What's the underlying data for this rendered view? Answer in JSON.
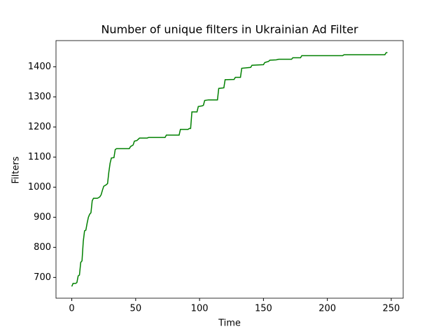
{
  "chart_data": {
    "type": "line",
    "title": "Number of unique filters in Ukrainian Ad Filter",
    "xlabel": "Time",
    "ylabel": "Filters",
    "x": [
      0,
      1,
      3,
      4,
      5,
      6,
      7,
      8,
      9,
      10,
      11,
      12,
      13,
      14,
      15,
      16,
      17,
      20,
      21,
      22,
      23,
      24,
      25,
      27,
      28,
      29,
      30,
      31,
      33,
      34,
      35,
      45,
      46,
      48,
      49,
      51,
      53,
      59,
      60,
      73,
      74,
      84,
      85,
      91,
      92,
      93,
      94,
      98,
      99,
      102,
      103,
      104,
      107,
      114,
      115,
      119,
      120,
      127,
      128,
      132,
      133,
      140,
      141,
      150,
      151,
      154,
      155,
      160,
      162,
      172,
      173,
      179,
      180,
      212,
      213,
      245,
      246,
      247
    ],
    "series": [
      {
        "name": "Filters",
        "color": "#008000",
        "values": [
          670,
          680,
          680,
          683,
          705,
          708,
          750,
          755,
          820,
          855,
          857,
          880,
          900,
          910,
          915,
          955,
          963,
          963,
          965,
          968,
          975,
          990,
          1003,
          1008,
          1012,
          1050,
          1080,
          1097,
          1098,
          1125,
          1128,
          1128,
          1135,
          1140,
          1153,
          1155,
          1163,
          1163,
          1165,
          1165,
          1173,
          1173,
          1192,
          1192,
          1195,
          1195,
          1250,
          1250,
          1268,
          1270,
          1272,
          1288,
          1290,
          1290,
          1328,
          1330,
          1357,
          1358,
          1365,
          1365,
          1395,
          1398,
          1405,
          1407,
          1414,
          1418,
          1422,
          1423,
          1425,
          1425,
          1430,
          1430,
          1437,
          1437,
          1440,
          1440,
          1447,
          1447
        ]
      }
    ],
    "xlim": [
      -12.35,
      259.35
    ],
    "xticks": [
      0,
      50,
      100,
      150,
      200,
      250
    ],
    "ylim": [
      631,
      1487
    ],
    "yticks": [
      700,
      800,
      900,
      1000,
      1100,
      1200,
      1300,
      1400
    ],
    "grid": false
  }
}
